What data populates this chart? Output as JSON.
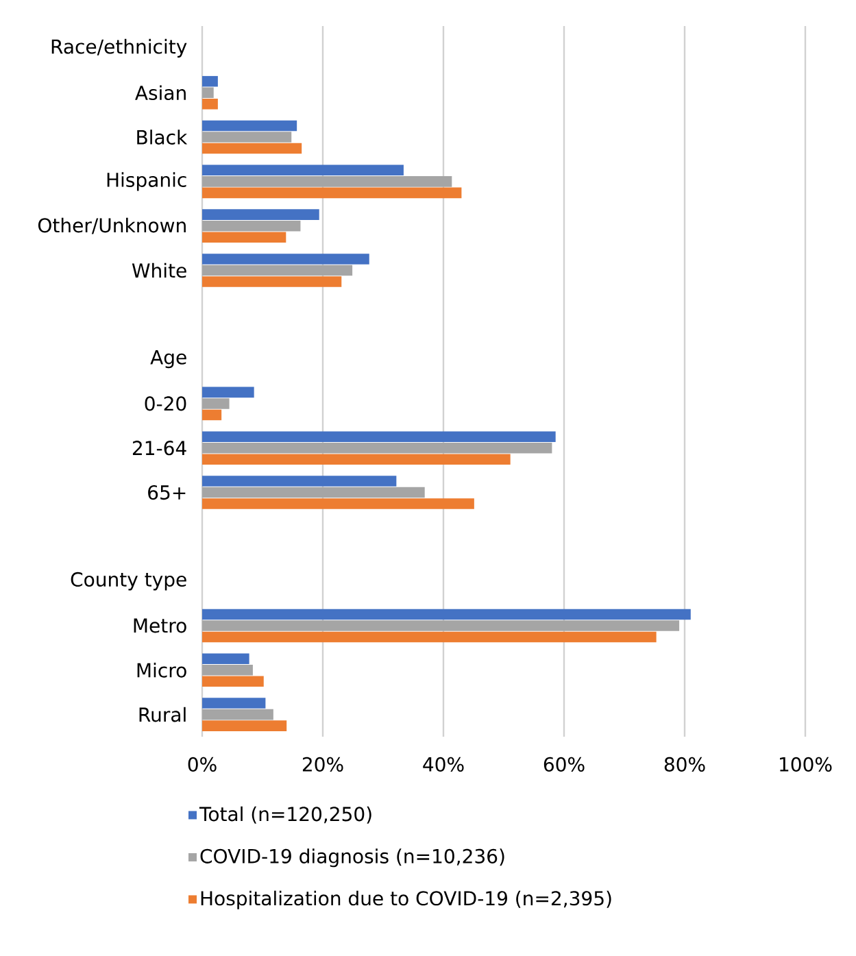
{
  "chart_data": {
    "type": "bar",
    "orientation": "horizontal",
    "categories": [
      "Race/ethnicity",
      "Asian",
      "Black",
      "Hispanic",
      "Other/Unknown",
      "White",
      null,
      "Age",
      "0-20",
      "21-64",
      "65+",
      null,
      "County type",
      "Metro",
      "Micro",
      "Rural"
    ],
    "series": [
      {
        "name": "Total (n=120,250)",
        "color": "#4472c4",
        "values": [
          null,
          2.6,
          15.7,
          33.4,
          19.4,
          27.7,
          null,
          null,
          8.6,
          58.6,
          32.2,
          null,
          null,
          81.0,
          7.8,
          10.5
        ]
      },
      {
        "name": "COVID-19 diagnosis (n=10,236)",
        "color": "#a5a5a5",
        "values": [
          null,
          1.9,
          14.8,
          41.4,
          16.3,
          24.9,
          null,
          null,
          4.5,
          58.0,
          36.9,
          null,
          null,
          79.1,
          8.4,
          11.8
        ]
      },
      {
        "name": "Hospitalization due to COVID-19 (n=2,395)",
        "color": "#ed7d31",
        "values": [
          null,
          2.6,
          16.5,
          43.0,
          13.9,
          23.1,
          null,
          null,
          3.2,
          51.1,
          45.1,
          null,
          null,
          75.3,
          10.2,
          14.0
        ]
      }
    ],
    "xlim": [
      0,
      100
    ],
    "xticks": [
      {
        "value": 0,
        "label": "0%"
      },
      {
        "value": 20,
        "label": "20%"
      },
      {
        "value": 40,
        "label": "40%"
      },
      {
        "value": 60,
        "label": "60%"
      },
      {
        "value": 80,
        "label": "80%"
      },
      {
        "value": 100,
        "label": "100%"
      }
    ],
    "grid": "x",
    "legend": "bottom"
  }
}
